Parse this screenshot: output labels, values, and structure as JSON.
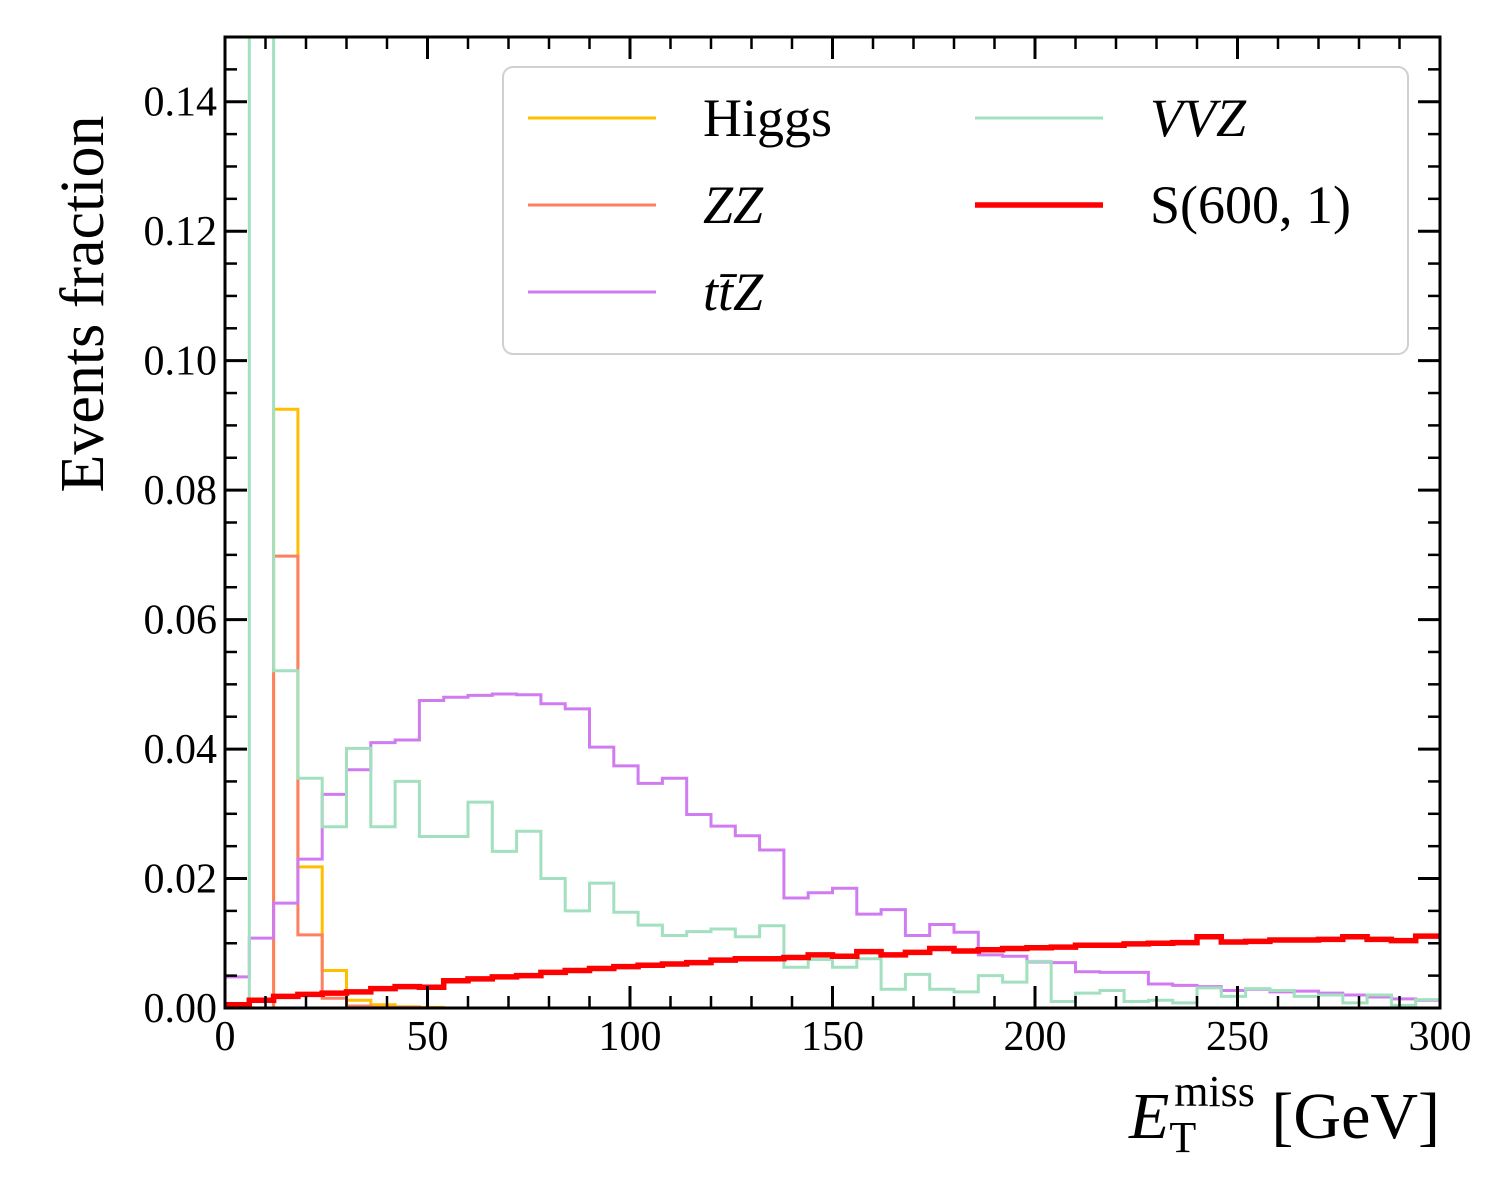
{
  "chart_data": {
    "type": "line",
    "style": "step histogram",
    "xlabel": {
      "main": "E",
      "sub": "T",
      "sup": "miss",
      "unit": "[GeV]"
    },
    "ylabel": "Events fraction",
    "xlim": [
      0,
      300
    ],
    "ylim": [
      0,
      0.15
    ],
    "x_ticks": [
      0,
      50,
      100,
      150,
      200,
      250,
      300
    ],
    "x_tick_labels": [
      "0",
      "50",
      "100",
      "150",
      "200",
      "250",
      "300"
    ],
    "y_ticks": [
      0,
      0.02,
      0.04,
      0.06,
      0.08,
      0.1,
      0.12,
      0.14
    ],
    "y_tick_labels": [
      "0.00",
      "0.02",
      "0.04",
      "0.06",
      "0.08",
      "0.10",
      "0.12",
      "0.14"
    ],
    "grid": false,
    "legend_position": "top-right",
    "bin_edges": [
      0,
      6,
      12,
      18,
      24,
      30,
      36,
      42,
      48,
      54,
      60,
      66,
      72,
      78,
      84,
      90,
      96,
      102,
      108,
      114,
      120,
      126,
      132,
      138,
      144,
      150,
      156,
      162,
      168,
      174,
      180,
      186,
      192,
      198,
      204,
      210,
      216,
      222,
      228,
      234,
      240,
      246,
      252,
      258,
      264,
      270,
      276,
      282,
      288,
      294,
      300
    ],
    "series": [
      {
        "name": "Higgs",
        "color": "#ffbf00",
        "line_width": 3,
        "values": [
          0.0,
          0.0,
          0.0925,
          0.0218,
          0.0058,
          0.0012,
          0.0005,
          0.0002,
          0.0001,
          0,
          0,
          0,
          0,
          0,
          0,
          0,
          0,
          0,
          0,
          0,
          0,
          0,
          0,
          0,
          0,
          0,
          0,
          0,
          0,
          0,
          0,
          0,
          0,
          0,
          0,
          0,
          0,
          0,
          0,
          0,
          0,
          0,
          0,
          0,
          0,
          0,
          0,
          0,
          0,
          0
        ]
      },
      {
        "name": "ZZ",
        "name_style": "italic",
        "color": "#fd8060",
        "line_width": 3,
        "values": [
          0.0,
          0.0,
          0.0698,
          0.0113,
          0.0015,
          0.0003,
          0.0001,
          0.0001,
          0,
          0,
          0,
          0,
          0,
          0,
          0,
          0,
          0,
          0,
          0,
          0,
          0,
          0,
          0,
          0,
          0,
          0,
          0,
          0,
          0,
          0,
          0,
          0,
          0,
          0,
          0,
          0,
          0,
          0,
          0,
          0,
          0,
          0,
          0,
          0,
          0,
          0,
          0,
          0,
          0,
          0
        ]
      },
      {
        "name": "tt̄Z",
        "name_style": "italic",
        "color": "#d07bf0",
        "line_width": 3,
        "values": [
          0.0048,
          0.0108,
          0.0162,
          0.023,
          0.033,
          0.0368,
          0.041,
          0.0414,
          0.0475,
          0.048,
          0.0483,
          0.0485,
          0.0484,
          0.047,
          0.0462,
          0.0403,
          0.0374,
          0.0347,
          0.0355,
          0.0299,
          0.0281,
          0.0266,
          0.0244,
          0.017,
          0.0178,
          0.0185,
          0.0145,
          0.0152,
          0.0112,
          0.0129,
          0.0117,
          0.0082,
          0.008,
          0.0071,
          0.007,
          0.0056,
          0.0055,
          0.0055,
          0.0037,
          0.0035,
          0.0033,
          0.0027,
          0.0029,
          0.0025,
          0.0026,
          0.0023,
          0.002,
          0.0017,
          0.0014,
          0.0012
        ]
      },
      {
        "name": "VVZ",
        "name_style": "italic",
        "color": "#a2e0c0",
        "line_width": 3,
        "values": [
          0.0,
          0.15,
          0.0521,
          0.0355,
          0.028,
          0.0401,
          0.028,
          0.035,
          0.0265,
          0.0265,
          0.0318,
          0.0242,
          0.0273,
          0.02,
          0.015,
          0.0193,
          0.0148,
          0.0128,
          0.0112,
          0.0118,
          0.0122,
          0.011,
          0.0127,
          0.0063,
          0.0075,
          0.0063,
          0.0076,
          0.0029,
          0.0052,
          0.0029,
          0.0025,
          0.005,
          0.004,
          0.0072,
          0.001,
          0.0023,
          0.0027,
          0.001,
          0.0012,
          0.0008,
          0.0031,
          0.0018,
          0.003,
          0.0027,
          0.0018,
          0.002,
          0.0008,
          0.002,
          0.0004,
          0.0013
        ]
      },
      {
        "name": "S(600, 1)",
        "color": "#ff0000",
        "line_width": 5.5,
        "values": [
          0.0005,
          0.0012,
          0.0018,
          0.0021,
          0.0023,
          0.0025,
          0.003,
          0.0033,
          0.0032,
          0.0042,
          0.0045,
          0.0048,
          0.005,
          0.0055,
          0.0058,
          0.0061,
          0.0064,
          0.0066,
          0.0068,
          0.007,
          0.0074,
          0.0076,
          0.0076,
          0.0078,
          0.0082,
          0.008,
          0.0087,
          0.0082,
          0.0086,
          0.0092,
          0.0088,
          0.009,
          0.0092,
          0.0093,
          0.0094,
          0.0097,
          0.0097,
          0.0099,
          0.01,
          0.0101,
          0.011,
          0.0102,
          0.0103,
          0.0105,
          0.0105,
          0.0106,
          0.011,
          0.0106,
          0.0104,
          0.0111
        ]
      }
    ],
    "legend_order": [
      [
        "Higgs",
        "VVZ"
      ],
      [
        "ZZ",
        "S(600, 1)"
      ],
      [
        "tt̄Z",
        null
      ]
    ]
  }
}
